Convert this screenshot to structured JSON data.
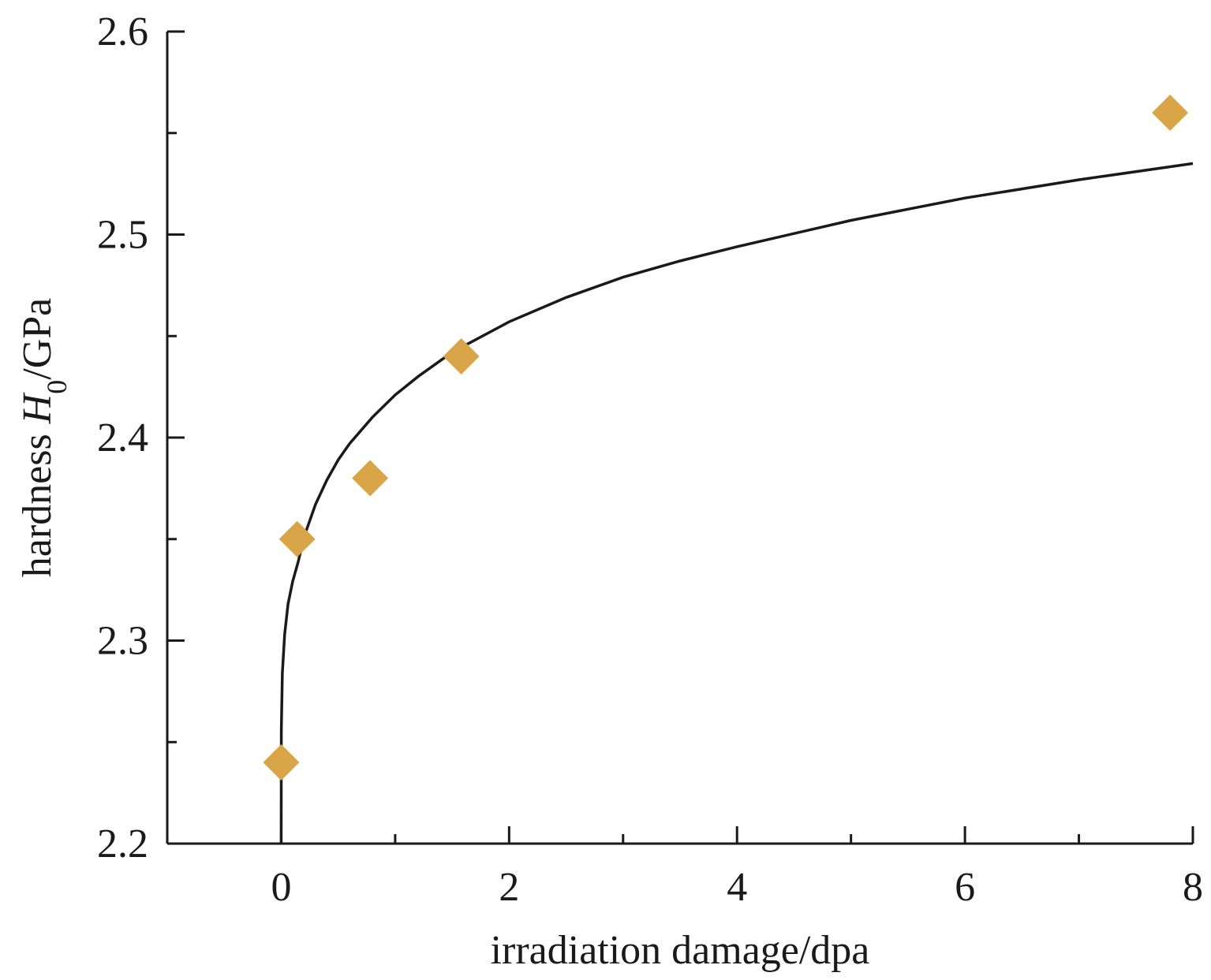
{
  "chart_data": {
    "type": "scatter",
    "title": "",
    "xlabel": "irradiation damage/dpa",
    "ylabel": {
      "prefix": "hardness ",
      "symbol": "H",
      "subscript": "0",
      "suffix": "/GPa"
    },
    "xlim": [
      -1,
      8
    ],
    "ylim": [
      2.2,
      2.6
    ],
    "x_ticks": [
      0,
      2,
      4,
      6,
      8
    ],
    "x_tick_labels": [
      "0",
      "2",
      "4",
      "6",
      "8"
    ],
    "x_minor_ticks": [
      1,
      3,
      5,
      7
    ],
    "y_ticks": [
      2.2,
      2.3,
      2.4,
      2.5,
      2.6
    ],
    "y_tick_labels": [
      "2.2",
      "2.3",
      "2.4",
      "2.5",
      "2.6"
    ],
    "y_minor_ticks": [
      2.25,
      2.35,
      2.45,
      2.55
    ],
    "grid": false,
    "series": [
      {
        "kind": "scatter",
        "marker": "diamond",
        "color": "#D9A548",
        "x": [
          0,
          0.14,
          0.78,
          1.58,
          7.8
        ],
        "y": [
          2.24,
          2.35,
          2.38,
          2.44,
          2.56
        ]
      },
      {
        "kind": "line",
        "color": "#1a1a1a",
        "x": [
          0,
          0.001,
          0.01,
          0.03,
          0.06,
          0.1,
          0.15,
          0.2,
          0.3,
          0.4,
          0.5,
          0.6,
          0.8,
          1.0,
          1.2,
          1.5,
          2.0,
          2.5,
          3.0,
          3.5,
          4.0,
          5.0,
          6.0,
          7.0,
          8.0
        ],
        "y": [
          2.2,
          2.256,
          2.284,
          2.303,
          2.318,
          2.329,
          2.339,
          2.351,
          2.367,
          2.379,
          2.389,
          2.397,
          2.41,
          2.421,
          2.43,
          2.442,
          2.457,
          2.469,
          2.479,
          2.487,
          2.494,
          2.507,
          2.518,
          2.527,
          2.535
        ]
      }
    ]
  }
}
